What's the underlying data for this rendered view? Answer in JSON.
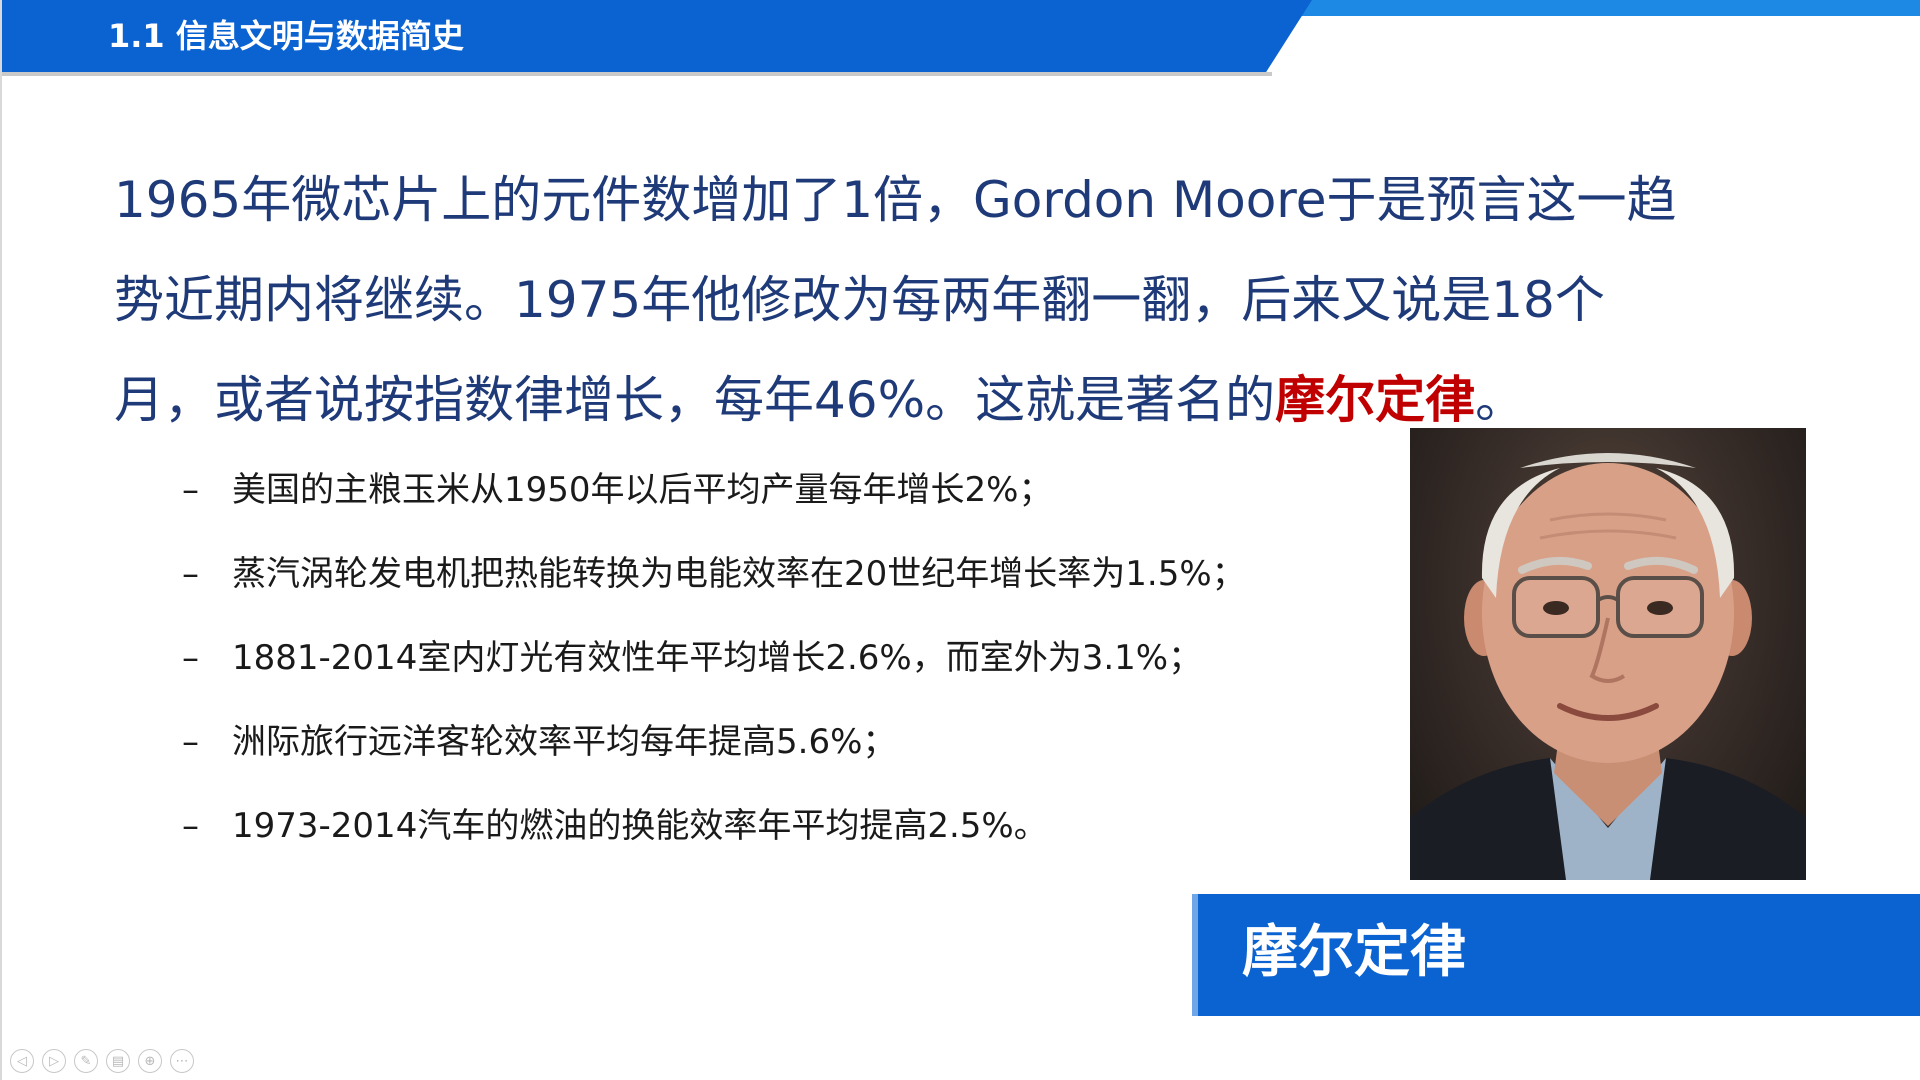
{
  "header": {
    "title": "1.1  信息文明与数据简史"
  },
  "main": {
    "line1": "1965年微芯片上的元件数增加了1倍，Gordon Moore于是预言这一趋",
    "line2": "势近期内将继续。1975年他修改为每两年翻一翻，后来又说是18个",
    "line3_prefix": "月，或者说按指数律增长，每年46%。这就是著名的",
    "line3_highlight": "摩尔定律",
    "line3_suffix": "。"
  },
  "bullets": {
    "dash": "–",
    "items": [
      "美国的主粮玉米从1950年以后平均产量每年增长2%；",
      "蒸汽涡轮发电机把热能转换为电能效率在20世纪年增长率为1.5%；",
      "1881-2014室内灯光有效性年平均增长2.6%，而室外为3.1%；",
      "洲际旅行远洋客轮效率平均每年提高5.6%；",
      "1973-2014汽车的燃油的换能效率年平均提高2.5%。"
    ]
  },
  "caption": {
    "label": "摩尔定律"
  },
  "toolbar": {
    "icons": [
      "prev-icon",
      "next-icon",
      "pen-icon",
      "copy-icon",
      "zoom-icon",
      "more-icon"
    ]
  },
  "colors": {
    "header_blue": "#0b62d1",
    "text_blue": "#1f3a78",
    "highlight_red": "#c00000"
  }
}
